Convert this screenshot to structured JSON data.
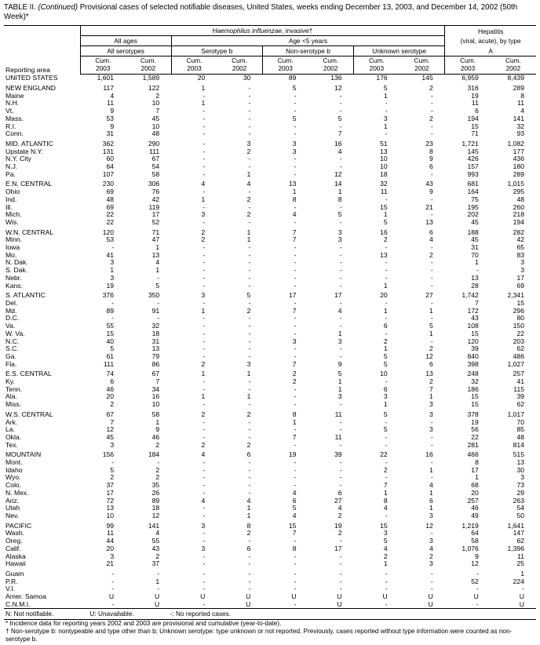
{
  "title": {
    "part1": "TABLE II. ",
    "continued": "(Continued)",
    "part2": " Provisional cases of selected notifiable diseases, United States, weeks ending December 13, 2003, and December 14, 2002 (50th Week)*"
  },
  "header": {
    "reporting_area": "Reporting area",
    "hi_italic": "Haemophilus influenzae",
    "hi_rest": ", invasive†",
    "hep_line1": "Hepatitis",
    "hep_line2": "(viral, acute), by type",
    "all_ages": "All ages",
    "age_lt5": "Age <5 years",
    "all_serotypes": "All serotypes",
    "serotype_b": "Serotype b",
    "non_serotype_b": "Non-serotype b",
    "unknown_serotype": "Unknown serotype",
    "hep_a": "A",
    "cum": "Cum.",
    "year_2003": "2003",
    "year_2002": "2002"
  },
  "rows": [
    {
      "cls": "us",
      "area": "UNITED STATES",
      "values": [
        "1,601",
        "1,589",
        "20",
        "30",
        "89",
        "136",
        "176",
        "145",
        "6,959",
        "8,439"
      ]
    },
    {
      "spacer": true
    },
    {
      "cls": "region",
      "area": "NEW ENGLAND",
      "values": [
        "117",
        "122",
        "1",
        "-",
        "5",
        "12",
        "5",
        "2",
        "316",
        "289"
      ]
    },
    {
      "cls": "state",
      "area": "Maine",
      "values": [
        "4",
        "2",
        "-",
        "-",
        "-",
        "-",
        "1",
        "-",
        "19",
        "8"
      ]
    },
    {
      "cls": "state",
      "area": "N.H.",
      "values": [
        "11",
        "10",
        "1",
        "-",
        "-",
        "-",
        "-",
        "-",
        "11",
        "11"
      ]
    },
    {
      "cls": "state",
      "area": "Vt.",
      "values": [
        "9",
        "7",
        "-",
        "-",
        "-",
        "-",
        "-",
        "-",
        "6",
        "4"
      ]
    },
    {
      "cls": "state",
      "area": "Mass.",
      "values": [
        "53",
        "45",
        "-",
        "-",
        "5",
        "5",
        "3",
        "2",
        "194",
        "141"
      ]
    },
    {
      "cls": "state",
      "area": "R.I.",
      "values": [
        "9",
        "10",
        "-",
        "-",
        "-",
        "-",
        "1",
        "-",
        "15",
        "32"
      ]
    },
    {
      "cls": "state",
      "area": "Conn.",
      "values": [
        "31",
        "48",
        "-",
        "-",
        "-",
        "7",
        "-",
        "-",
        "71",
        "93"
      ]
    },
    {
      "spacer": true
    },
    {
      "cls": "region",
      "area": "MID. ATLANTIC",
      "values": [
        "362",
        "290",
        "-",
        "3",
        "3",
        "16",
        "51",
        "23",
        "1,721",
        "1,082"
      ]
    },
    {
      "cls": "state",
      "area": "Upstate N.Y.",
      "values": [
        "131",
        "111",
        "-",
        "2",
        "3",
        "4",
        "13",
        "8",
        "145",
        "177"
      ]
    },
    {
      "cls": "state",
      "area": "N.Y. City",
      "values": [
        "60",
        "67",
        "-",
        "-",
        "-",
        "-",
        "10",
        "9",
        "426",
        "436"
      ]
    },
    {
      "cls": "state",
      "area": "N.J.",
      "values": [
        "64",
        "54",
        "-",
        "-",
        "-",
        "-",
        "10",
        "6",
        "157",
        "180"
      ]
    },
    {
      "cls": "state",
      "area": "Pa.",
      "values": [
        "107",
        "58",
        "-",
        "1",
        "-",
        "12",
        "18",
        "-",
        "993",
        "289"
      ]
    },
    {
      "spacer": true
    },
    {
      "cls": "region",
      "area": "E.N. CENTRAL",
      "values": [
        "230",
        "306",
        "4",
        "4",
        "13",
        "14",
        "32",
        "43",
        "681",
        "1,015"
      ]
    },
    {
      "cls": "state",
      "area": "Ohio",
      "values": [
        "69",
        "76",
        "-",
        "-",
        "1",
        "1",
        "11",
        "9",
        "164",
        "295"
      ]
    },
    {
      "cls": "state",
      "area": "Ind.",
      "values": [
        "48",
        "42",
        "1",
        "2",
        "8",
        "8",
        "-",
        "-",
        "75",
        "48"
      ]
    },
    {
      "cls": "state",
      "area": "Ill.",
      "values": [
        "69",
        "119",
        "-",
        "-",
        "-",
        "-",
        "15",
        "21",
        "195",
        "260"
      ]
    },
    {
      "cls": "state",
      "area": "Mich.",
      "values": [
        "22",
        "17",
        "3",
        "2",
        "4",
        "5",
        "1",
        "-",
        "202",
        "218"
      ]
    },
    {
      "cls": "state",
      "area": "Wis.",
      "values": [
        "22",
        "52",
        "-",
        "-",
        "-",
        "-",
        "5",
        "13",
        "45",
        "194"
      ]
    },
    {
      "spacer": true
    },
    {
      "cls": "region",
      "area": "W.N. CENTRAL",
      "values": [
        "120",
        "71",
        "2",
        "1",
        "7",
        "3",
        "16",
        "6",
        "188",
        "282"
      ]
    },
    {
      "cls": "state",
      "area": "Minn.",
      "values": [
        "53",
        "47",
        "2",
        "1",
        "7",
        "3",
        "2",
        "4",
        "45",
        "42"
      ]
    },
    {
      "cls": "state",
      "area": "Iowa",
      "values": [
        "-",
        "1",
        "-",
        "-",
        "-",
        "-",
        "-",
        "-",
        "31",
        "65"
      ]
    },
    {
      "cls": "state",
      "area": "Mo.",
      "values": [
        "41",
        "13",
        "-",
        "-",
        "-",
        "-",
        "13",
        "2",
        "70",
        "83"
      ]
    },
    {
      "cls": "state",
      "area": "N. Dak.",
      "values": [
        "3",
        "4",
        "-",
        "-",
        "-",
        "-",
        "-",
        "-",
        "1",
        "3"
      ]
    },
    {
      "cls": "state",
      "area": "S. Dak.",
      "values": [
        "1",
        "1",
        "-",
        "-",
        "-",
        "-",
        "-",
        "-",
        "-",
        "3"
      ]
    },
    {
      "cls": "state",
      "area": "Nebr.",
      "values": [
        "3",
        "-",
        "-",
        "-",
        "-",
        "-",
        "-",
        "-",
        "13",
        "17"
      ]
    },
    {
      "cls": "state",
      "area": "Kans.",
      "values": [
        "19",
        "5",
        "-",
        "-",
        "-",
        "-",
        "1",
        "-",
        "28",
        "69"
      ]
    },
    {
      "spacer": true
    },
    {
      "cls": "region",
      "area": "S. ATLANTIC",
      "values": [
        "376",
        "350",
        "3",
        "5",
        "17",
        "17",
        "20",
        "27",
        "1,742",
        "2,341"
      ]
    },
    {
      "cls": "state",
      "area": "Del.",
      "values": [
        "-",
        "-",
        "-",
        "-",
        "-",
        "-",
        "-",
        "-",
        "7",
        "15"
      ]
    },
    {
      "cls": "state",
      "area": "Md.",
      "values": [
        "89",
        "91",
        "1",
        "2",
        "7",
        "4",
        "1",
        "1",
        "172",
        "296"
      ]
    },
    {
      "cls": "state",
      "area": "D.C.",
      "values": [
        "-",
        "-",
        "-",
        "-",
        "-",
        "-",
        "-",
        "-",
        "43",
        "80"
      ]
    },
    {
      "cls": "state",
      "area": "Va.",
      "values": [
        "55",
        "32",
        "-",
        "-",
        "-",
        "-",
        "6",
        "5",
        "108",
        "150"
      ]
    },
    {
      "cls": "state",
      "area": "W. Va.",
      "values": [
        "15",
        "18",
        "-",
        "-",
        "-",
        "1",
        "-",
        "1",
        "15",
        "22"
      ]
    },
    {
      "cls": "state",
      "area": "N.C.",
      "values": [
        "40",
        "31",
        "-",
        "-",
        "3",
        "3",
        "2",
        "-",
        "120",
        "203"
      ]
    },
    {
      "cls": "state",
      "area": "S.C.",
      "values": [
        "5",
        "13",
        "-",
        "-",
        "-",
        "-",
        "1",
        "2",
        "39",
        "62"
      ]
    },
    {
      "cls": "state",
      "area": "Ga.",
      "values": [
        "61",
        "79",
        "-",
        "-",
        "-",
        "-",
        "5",
        "12",
        "840",
        "486"
      ]
    },
    {
      "cls": "state",
      "area": "Fla.",
      "values": [
        "111",
        "86",
        "2",
        "3",
        "7",
        "9",
        "5",
        "6",
        "398",
        "1,027"
      ]
    },
    {
      "spacer": true
    },
    {
      "cls": "region",
      "area": "E.S. CENTRAL",
      "values": [
        "74",
        "67",
        "1",
        "1",
        "2",
        "5",
        "10",
        "13",
        "248",
        "257"
      ]
    },
    {
      "cls": "state",
      "area": "Ky.",
      "values": [
        "6",
        "7",
        "-",
        "-",
        "2",
        "1",
        "-",
        "2",
        "32",
        "41"
      ]
    },
    {
      "cls": "state",
      "area": "Tenn.",
      "values": [
        "46",
        "34",
        "-",
        "-",
        "-",
        "1",
        "6",
        "7",
        "186",
        "115"
      ]
    },
    {
      "cls": "state",
      "area": "Ala.",
      "values": [
        "20",
        "16",
        "1",
        "1",
        "-",
        "3",
        "3",
        "1",
        "15",
        "39"
      ]
    },
    {
      "cls": "state",
      "area": "Miss.",
      "values": [
        "2",
        "10",
        "-",
        "-",
        "-",
        "-",
        "1",
        "3",
        "15",
        "62"
      ]
    },
    {
      "spacer": true
    },
    {
      "cls": "region",
      "area": "W.S. CENTRAL",
      "values": [
        "67",
        "58",
        "2",
        "2",
        "8",
        "11",
        "5",
        "3",
        "378",
        "1,017"
      ]
    },
    {
      "cls": "state",
      "area": "Ark.",
      "values": [
        "7",
        "1",
        "-",
        "-",
        "1",
        "-",
        "-",
        "-",
        "19",
        "70"
      ]
    },
    {
      "cls": "state",
      "area": "La.",
      "values": [
        "12",
        "9",
        "-",
        "-",
        "-",
        "-",
        "5",
        "3",
        "56",
        "85"
      ]
    },
    {
      "cls": "state",
      "area": "Okla.",
      "values": [
        "45",
        "46",
        "-",
        "-",
        "7",
        "11",
        "-",
        "-",
        "22",
        "48"
      ]
    },
    {
      "cls": "state",
      "area": "Tex.",
      "values": [
        "3",
        "2",
        "2",
        "2",
        "-",
        "-",
        "-",
        "-",
        "281",
        "814"
      ]
    },
    {
      "spacer": true
    },
    {
      "cls": "region",
      "area": "MOUNTAIN",
      "values": [
        "156",
        "184",
        "4",
        "6",
        "19",
        "39",
        "22",
        "16",
        "466",
        "515"
      ]
    },
    {
      "cls": "state",
      "area": "Mont.",
      "values": [
        "-",
        "-",
        "-",
        "-",
        "-",
        "-",
        "-",
        "-",
        "8",
        "13"
      ]
    },
    {
      "cls": "state",
      "area": "Idaho",
      "values": [
        "5",
        "2",
        "-",
        "-",
        "-",
        "-",
        "2",
        "1",
        "17",
        "30"
      ]
    },
    {
      "cls": "state",
      "area": "Wyo.",
      "values": [
        "2",
        "2",
        "-",
        "-",
        "-",
        "-",
        "-",
        "-",
        "1",
        "3"
      ]
    },
    {
      "cls": "state",
      "area": "Colo.",
      "values": [
        "37",
        "35",
        "-",
        "-",
        "-",
        "-",
        "7",
        "4",
        "68",
        "73"
      ]
    },
    {
      "cls": "state",
      "area": "N. Mex.",
      "values": [
        "17",
        "26",
        "-",
        "-",
        "4",
        "6",
        "1",
        "1",
        "20",
        "29"
      ]
    },
    {
      "cls": "state",
      "area": "Ariz.",
      "values": [
        "72",
        "89",
        "4",
        "4",
        "6",
        "27",
        "8",
        "6",
        "257",
        "263"
      ]
    },
    {
      "cls": "state",
      "area": "Utah",
      "values": [
        "13",
        "18",
        "-",
        "1",
        "5",
        "4",
        "4",
        "1",
        "46",
        "54"
      ]
    },
    {
      "cls": "state",
      "area": "Nev.",
      "values": [
        "10",
        "12",
        "-",
        "1",
        "4",
        "2",
        "-",
        "3",
        "49",
        "50"
      ]
    },
    {
      "spacer": true
    },
    {
      "cls": "region",
      "area": "PACIFIC",
      "values": [
        "99",
        "141",
        "3",
        "8",
        "15",
        "19",
        "15",
        "12",
        "1,219",
        "1,641"
      ]
    },
    {
      "cls": "state",
      "area": "Wash.",
      "values": [
        "11",
        "4",
        "-",
        "2",
        "7",
        "2",
        "3",
        "-",
        "64",
        "147"
      ]
    },
    {
      "cls": "state",
      "area": "Oreg.",
      "values": [
        "44",
        "55",
        "-",
        "-",
        "-",
        "-",
        "5",
        "3",
        "58",
        "62"
      ]
    },
    {
      "cls": "state",
      "area": "Calif.",
      "values": [
        "20",
        "43",
        "3",
        "6",
        "8",
        "17",
        "4",
        "4",
        "1,076",
        "1,396"
      ]
    },
    {
      "cls": "state",
      "area": "Alaska",
      "values": [
        "3",
        "2",
        "-",
        "-",
        "-",
        "-",
        "2",
        "2",
        "9",
        "11"
      ]
    },
    {
      "cls": "state",
      "area": "Hawaii",
      "values": [
        "21",
        "37",
        "-",
        "-",
        "-",
        "-",
        "1",
        "3",
        "12",
        "25"
      ]
    },
    {
      "spacer": true
    },
    {
      "cls": "territory",
      "area": "Guam",
      "values": [
        "-",
        "-",
        "-",
        "-",
        "-",
        "-",
        "-",
        "-",
        "-",
        "1"
      ]
    },
    {
      "cls": "territory",
      "area": "P.R.",
      "values": [
        "-",
        "1",
        "-",
        "-",
        "-",
        "-",
        "-",
        "-",
        "52",
        "224"
      ]
    },
    {
      "cls": "territory",
      "area": "V.I.",
      "values": [
        "-",
        "-",
        "-",
        "-",
        "-",
        "-",
        "-",
        "-",
        "-",
        "-"
      ]
    },
    {
      "cls": "territory",
      "area": "Amer. Samoa",
      "values": [
        "U",
        "U",
        "U",
        "U",
        "U",
        "U",
        "U",
        "U",
        "U",
        "U"
      ]
    },
    {
      "cls": "territory",
      "area": "C.N.M.I.",
      "values": [
        "-",
        "U",
        "-",
        "U",
        "-",
        "U",
        "-",
        "U",
        "-",
        "U"
      ]
    }
  ],
  "footnotes": {
    "legend_n": "N: Not notifiable.",
    "legend_u": "U: Unavailable.",
    "legend_dash": "-: No reported cases.",
    "star": "* Incidence data for reporting years 2002 and 2003 are provisional and cumulative (year-to-date).",
    "dagger": "† Non-serotype b: nontypeable and type other than b; Unknown serotype: type unknown or not reported. Previously, cases reported without type information were counted as non-serotype b."
  }
}
